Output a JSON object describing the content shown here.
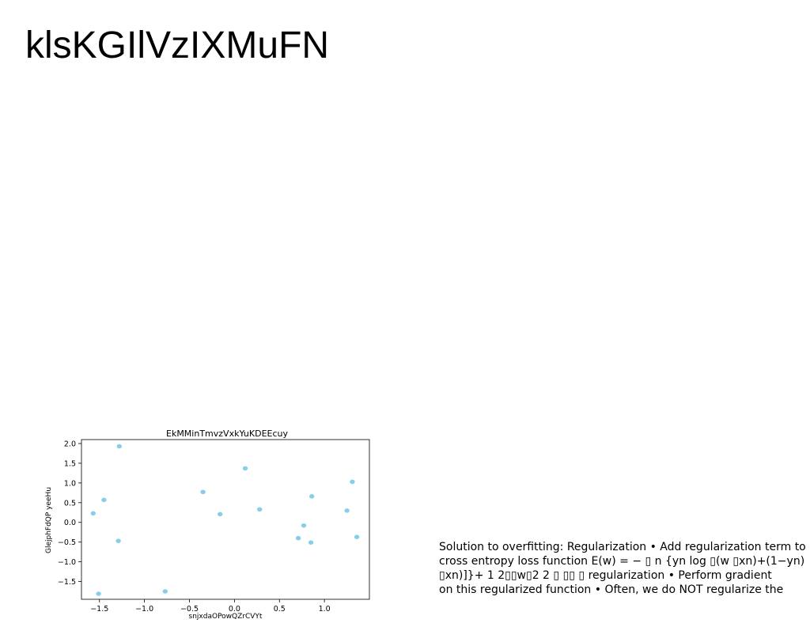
{
  "slide": {
    "title": "klsKGIlVzIXMuFN",
    "text_lines": [
      "Solution to overfitting: Regularization • Add regularization term to",
      "cross entropy loss function E(w) = − ▯ n {yn log ▯(w ▯xn)+(1−yn)",
      "▯xn)]}+ 1 2▯▯w▯2 2 ▯ ▯▯ ▯ regularization • Perform gradient",
      "on this regularized function • Often, we do NOT regularize the"
    ]
  },
  "chart_data": {
    "type": "scatter",
    "title": "EkMMinTmvzVxkYuKDEEcuy",
    "xlabel": "snjxdaOPowQZrCVYt",
    "ylabel": "GlejphFdQP yeeHu",
    "xlim": [
      -1.7,
      1.5
    ],
    "ylim": [
      -1.95,
      2.1
    ],
    "xticks": [
      "-1.5",
      "-1.0",
      "-0.5",
      "0.0",
      "0.5",
      "1.0"
    ],
    "xtick_values": [
      -1.5,
      -1.0,
      -0.5,
      0.0,
      0.5,
      1.0
    ],
    "yticks": [
      "-1.5",
      "-1.0",
      "-0.5",
      "0.0",
      "0.5",
      "1.0",
      "1.5",
      "2.0"
    ],
    "ytick_values": [
      -1.5,
      -1.0,
      -0.5,
      0.0,
      0.5,
      1.0,
      1.5,
      2.0
    ],
    "grid": false,
    "point_color": "#87ceeb",
    "points": [
      {
        "x": -1.57,
        "y": 0.23
      },
      {
        "x": -1.45,
        "y": 0.57
      },
      {
        "x": -1.28,
        "y": 1.93
      },
      {
        "x": -1.29,
        "y": -0.47
      },
      {
        "x": -1.51,
        "y": -1.81
      },
      {
        "x": -0.77,
        "y": -1.75
      },
      {
        "x": -0.35,
        "y": 0.77
      },
      {
        "x": -0.16,
        "y": 0.21
      },
      {
        "x": 0.12,
        "y": 1.37
      },
      {
        "x": 0.28,
        "y": 0.33
      },
      {
        "x": 0.71,
        "y": -0.4
      },
      {
        "x": 0.77,
        "y": -0.08
      },
      {
        "x": 0.85,
        "y": -0.51
      },
      {
        "x": 0.86,
        "y": 0.66
      },
      {
        "x": 1.25,
        "y": 0.3
      },
      {
        "x": 1.31,
        "y": 1.03
      },
      {
        "x": 1.36,
        "y": -0.37
      }
    ]
  }
}
